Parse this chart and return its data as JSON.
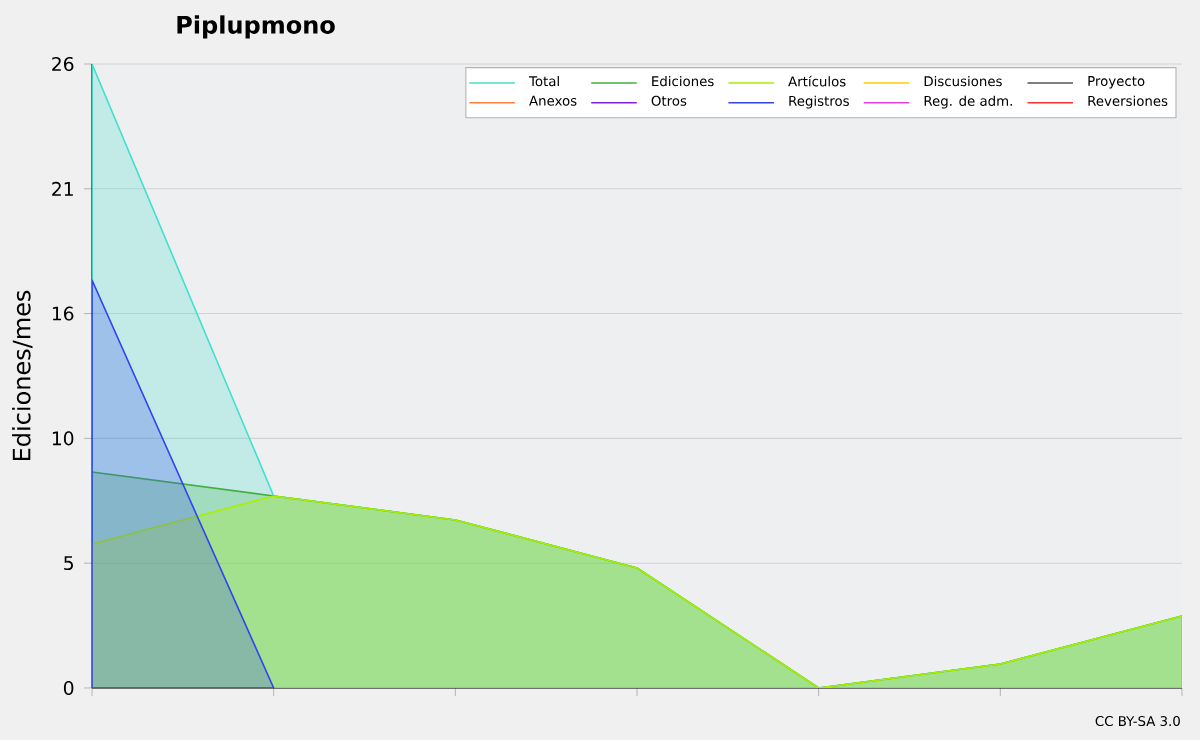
{
  "chart_data": {
    "type": "area",
    "title": "Piplupmono",
    "ylabel": "Ediciones/mes",
    "annotations": [
      "CC BY-SA 3.0"
    ],
    "categories": [
      null,
      null,
      null,
      null,
      null,
      null,
      null
    ],
    "ylim": [
      0,
      26
    ],
    "yticks": [
      0,
      {
        "value": 5.2,
        "label": "5"
      },
      {
        "value": 10.4,
        "label": "10"
      },
      {
        "value": 15.6,
        "label": "16"
      },
      {
        "value": 20.8,
        "label": "21"
      },
      26
    ],
    "grid": "y",
    "legend": "top right",
    "series": [
      {
        "name": "Total",
        "color": "#40e0d0",
        "values": [
          26,
          8,
          7,
          5,
          0,
          1,
          3
        ]
      },
      {
        "name": "Ediciones",
        "color": "#40b040",
        "values": [
          9,
          8,
          7,
          5,
          0,
          1,
          3
        ]
      },
      {
        "name": "Artículos",
        "color": "#aaee00",
        "values": [
          6,
          8,
          7,
          5,
          0,
          1,
          3
        ]
      },
      {
        "name": "Discusiones",
        "color": "#ffcc00",
        "values": [
          null,
          null,
          null,
          null,
          null,
          null,
          null
        ]
      },
      {
        "name": "Proyecto",
        "color": "#555555",
        "values": [
          null,
          null,
          null,
          null,
          null,
          null,
          null
        ]
      },
      {
        "name": "Anexos",
        "color": "#ff8040",
        "values": [
          null,
          null,
          null,
          null,
          null,
          null,
          null
        ]
      },
      {
        "name": "Otros",
        "color": "#8020e0",
        "values": [
          null,
          null,
          null,
          null,
          null,
          null,
          null
        ]
      },
      {
        "name": "Registros",
        "color": "#3344ee",
        "values": [
          17,
          0,
          null,
          null,
          null,
          null,
          null
        ]
      },
      {
        "name": "Reg. de adm.",
        "color": "#e040e0",
        "values": [
          null,
          null,
          null,
          null,
          null,
          null,
          null
        ]
      },
      {
        "name": "Reversiones",
        "color": "#ff3030",
        "values": [
          null,
          null,
          null,
          null,
          null,
          null,
          null
        ]
      }
    ]
  }
}
